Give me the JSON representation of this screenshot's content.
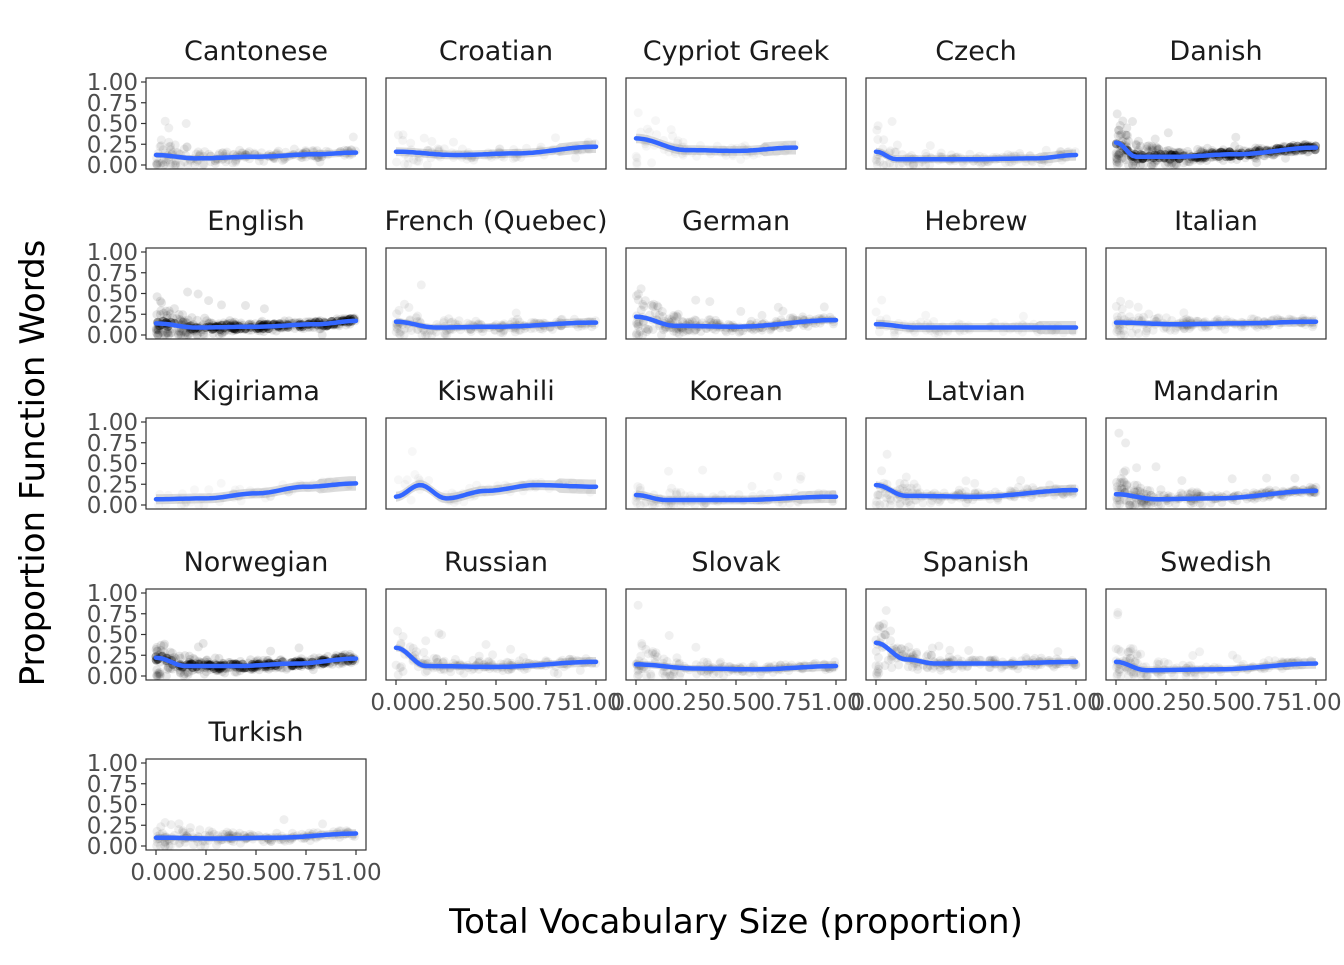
{
  "chart_data": {
    "type": "scatter",
    "title": "",
    "xlabel": "Total Vocabulary Size (proportion)",
    "ylabel": "Proportion Function Words",
    "xlim": [
      0,
      1
    ],
    "ylim": [
      0,
      1
    ],
    "x_ticks": [
      "0.00",
      "0.25",
      "0.50",
      "0.75",
      "1.00"
    ],
    "y_ticks": [
      "0.00",
      "0.25",
      "0.50",
      "0.75",
      "1.00"
    ],
    "colors": {
      "points": "#000000",
      "smooth": "#3366ff",
      "ribbon": "#999999",
      "frame": "#333333"
    },
    "smoother": "loess",
    "facets": [
      {
        "name": "Cantonese",
        "density": 0.6,
        "xmax": 1.0,
        "trend": [
          [
            0,
            0.12
          ],
          [
            0.2,
            0.08
          ],
          [
            0.5,
            0.1
          ],
          [
            0.8,
            0.13
          ],
          [
            1,
            0.15
          ]
        ]
      },
      {
        "name": "Croatian",
        "density": 0.25,
        "xmax": 1.0,
        "trend": [
          [
            0,
            0.16
          ],
          [
            0.3,
            0.12
          ],
          [
            0.6,
            0.14
          ],
          [
            1,
            0.22
          ]
        ]
      },
      {
        "name": "Cypriot Greek",
        "density": 0.15,
        "xmax": 0.8,
        "trend": [
          [
            0,
            0.32
          ],
          [
            0.25,
            0.18
          ],
          [
            0.5,
            0.17
          ],
          [
            0.8,
            0.21
          ]
        ]
      },
      {
        "name": "Czech",
        "density": 0.35,
        "xmax": 1.0,
        "trend": [
          [
            0,
            0.16
          ],
          [
            0.1,
            0.07
          ],
          [
            0.5,
            0.07
          ],
          [
            0.8,
            0.08
          ],
          [
            1,
            0.12
          ]
        ]
      },
      {
        "name": "Danish",
        "density": 1.0,
        "xmax": 1.0,
        "trend": [
          [
            0,
            0.27
          ],
          [
            0.1,
            0.1
          ],
          [
            0.3,
            0.1
          ],
          [
            0.6,
            0.13
          ],
          [
            1,
            0.21
          ]
        ]
      },
      {
        "name": "English",
        "density": 1.0,
        "xmax": 1.0,
        "trend": [
          [
            0,
            0.14
          ],
          [
            0.2,
            0.09
          ],
          [
            0.5,
            0.1
          ],
          [
            0.8,
            0.13
          ],
          [
            1,
            0.17
          ]
        ]
      },
      {
        "name": "French (Quebec)",
        "density": 0.5,
        "xmax": 1.0,
        "trend": [
          [
            0,
            0.16
          ],
          [
            0.2,
            0.09
          ],
          [
            0.5,
            0.1
          ],
          [
            1,
            0.15
          ]
        ]
      },
      {
        "name": "German",
        "density": 0.7,
        "xmax": 1.0,
        "trend": [
          [
            0,
            0.22
          ],
          [
            0.2,
            0.11
          ],
          [
            0.5,
            0.1
          ],
          [
            1,
            0.18
          ]
        ]
      },
      {
        "name": "Hebrew",
        "density": 0.2,
        "xmax": 1.0,
        "trend": [
          [
            0,
            0.13
          ],
          [
            0.2,
            0.09
          ],
          [
            0.5,
            0.09
          ],
          [
            1,
            0.09
          ]
        ]
      },
      {
        "name": "Italian",
        "density": 0.5,
        "xmax": 1.0,
        "trend": [
          [
            0,
            0.15
          ],
          [
            0.3,
            0.13
          ],
          [
            0.6,
            0.14
          ],
          [
            1,
            0.16
          ]
        ]
      },
      {
        "name": "Kigiriama",
        "density": 0.1,
        "xmax": 1.0,
        "trend": [
          [
            0,
            0.07
          ],
          [
            0.25,
            0.08
          ],
          [
            0.5,
            0.14
          ],
          [
            0.75,
            0.22
          ],
          [
            1,
            0.26
          ]
        ]
      },
      {
        "name": "Kiswahili",
        "density": 0.1,
        "xmax": 1.0,
        "trend": [
          [
            0,
            0.1
          ],
          [
            0.12,
            0.24
          ],
          [
            0.25,
            0.08
          ],
          [
            0.45,
            0.17
          ],
          [
            0.7,
            0.24
          ],
          [
            1,
            0.22
          ]
        ]
      },
      {
        "name": "Korean",
        "density": 0.25,
        "xmax": 1.0,
        "trend": [
          [
            0,
            0.12
          ],
          [
            0.15,
            0.06
          ],
          [
            0.5,
            0.06
          ],
          [
            1,
            0.1
          ]
        ]
      },
      {
        "name": "Latvian",
        "density": 0.4,
        "xmax": 1.0,
        "trend": [
          [
            0,
            0.24
          ],
          [
            0.15,
            0.11
          ],
          [
            0.5,
            0.1
          ],
          [
            1,
            0.18
          ]
        ]
      },
      {
        "name": "Mandarin",
        "density": 0.7,
        "xmax": 1.0,
        "trend": [
          [
            0,
            0.13
          ],
          [
            0.2,
            0.07
          ],
          [
            0.5,
            0.08
          ],
          [
            1,
            0.17
          ]
        ]
      },
      {
        "name": "Norwegian",
        "density": 1.0,
        "xmax": 1.0,
        "trend": [
          [
            0,
            0.22
          ],
          [
            0.15,
            0.12
          ],
          [
            0.4,
            0.12
          ],
          [
            0.7,
            0.15
          ],
          [
            1,
            0.21
          ]
        ]
      },
      {
        "name": "Russian",
        "density": 0.45,
        "xmax": 1.0,
        "trend": [
          [
            0,
            0.34
          ],
          [
            0.15,
            0.12
          ],
          [
            0.5,
            0.11
          ],
          [
            1,
            0.17
          ]
        ]
      },
      {
        "name": "Slovak",
        "density": 0.45,
        "xmax": 1.0,
        "trend": [
          [
            0,
            0.14
          ],
          [
            0.3,
            0.09
          ],
          [
            0.6,
            0.08
          ],
          [
            1,
            0.12
          ]
        ]
      },
      {
        "name": "Spanish",
        "density": 0.6,
        "xmax": 1.0,
        "trend": [
          [
            0,
            0.4
          ],
          [
            0.15,
            0.2
          ],
          [
            0.3,
            0.15
          ],
          [
            0.6,
            0.15
          ],
          [
            1,
            0.17
          ]
        ]
      },
      {
        "name": "Swedish",
        "density": 0.4,
        "xmax": 1.0,
        "trend": [
          [
            0,
            0.17
          ],
          [
            0.15,
            0.07
          ],
          [
            0.5,
            0.08
          ],
          [
            1,
            0.15
          ]
        ]
      },
      {
        "name": "Turkish",
        "density": 0.55,
        "xmax": 1.0,
        "trend": [
          [
            0,
            0.1
          ],
          [
            0.3,
            0.09
          ],
          [
            0.6,
            0.1
          ],
          [
            1,
            0.15
          ]
        ]
      }
    ]
  }
}
